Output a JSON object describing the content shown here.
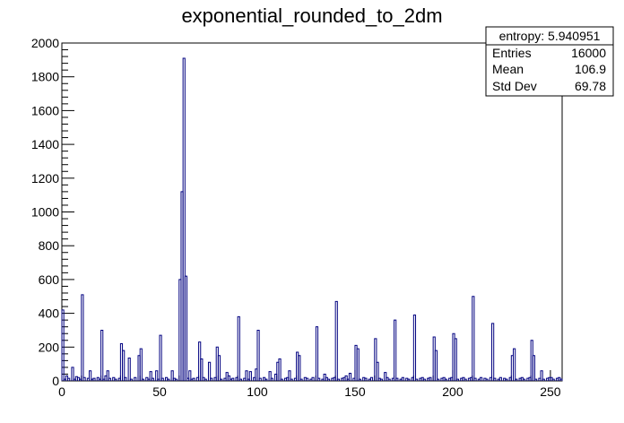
{
  "chart_data": {
    "type": "bar",
    "title": "exponential_rounded_to_2dm",
    "xlabel": "",
    "ylabel": "",
    "xlim": [
      0,
      256
    ],
    "ylim": [
      0,
      2000
    ],
    "x_ticks": [
      0,
      50,
      100,
      150,
      200,
      250
    ],
    "y_ticks": [
      0,
      200,
      400,
      600,
      800,
      1000,
      1200,
      1400,
      1600,
      1800,
      2000
    ],
    "bin_width": 1,
    "line_color": "#000080",
    "stats_box": {
      "header": "entropy: 5.940951",
      "rows": [
        {
          "label": "Entries",
          "value": "16000"
        },
        {
          "label": "Mean",
          "value": "106.9"
        },
        {
          "label": "Std Dev",
          "value": "69.78"
        }
      ]
    },
    "bins": [
      [
        0,
        420
      ],
      [
        1,
        10
      ],
      [
        2,
        30
      ],
      [
        3,
        15
      ],
      [
        4,
        0
      ],
      [
        5,
        80
      ],
      [
        6,
        10
      ],
      [
        7,
        25
      ],
      [
        8,
        20
      ],
      [
        9,
        10
      ],
      [
        10,
        510
      ],
      [
        11,
        20
      ],
      [
        12,
        0
      ],
      [
        13,
        15
      ],
      [
        14,
        60
      ],
      [
        15,
        10
      ],
      [
        16,
        15
      ],
      [
        17,
        0
      ],
      [
        18,
        20
      ],
      [
        19,
        10
      ],
      [
        20,
        300
      ],
      [
        21,
        10
      ],
      [
        22,
        30
      ],
      [
        23,
        60
      ],
      [
        24,
        15
      ],
      [
        25,
        0
      ],
      [
        26,
        20
      ],
      [
        27,
        10
      ],
      [
        28,
        0
      ],
      [
        29,
        15
      ],
      [
        30,
        220
      ],
      [
        31,
        180
      ],
      [
        32,
        20
      ],
      [
        33,
        0
      ],
      [
        34,
        135
      ],
      [
        35,
        10
      ],
      [
        36,
        0
      ],
      [
        37,
        20
      ],
      [
        38,
        0
      ],
      [
        39,
        150
      ],
      [
        40,
        190
      ],
      [
        41,
        10
      ],
      [
        42,
        0
      ],
      [
        43,
        20
      ],
      [
        44,
        10
      ],
      [
        45,
        55
      ],
      [
        46,
        15
      ],
      [
        47,
        0
      ],
      [
        48,
        60
      ],
      [
        49,
        10
      ],
      [
        50,
        270
      ],
      [
        51,
        15
      ],
      [
        52,
        0
      ],
      [
        53,
        20
      ],
      [
        54,
        10
      ],
      [
        55,
        0
      ],
      [
        56,
        60
      ],
      [
        57,
        15
      ],
      [
        58,
        10
      ],
      [
        59,
        0
      ],
      [
        60,
        600
      ],
      [
        61,
        1120
      ],
      [
        62,
        1910
      ],
      [
        63,
        620
      ],
      [
        64,
        15
      ],
      [
        65,
        60
      ],
      [
        66,
        10
      ],
      [
        67,
        15
      ],
      [
        68,
        0
      ],
      [
        69,
        20
      ],
      [
        70,
        230
      ],
      [
        71,
        130
      ],
      [
        72,
        20
      ],
      [
        73,
        10
      ],
      [
        74,
        0
      ],
      [
        75,
        110
      ],
      [
        76,
        15
      ],
      [
        77,
        0
      ],
      [
        78,
        20
      ],
      [
        79,
        200
      ],
      [
        80,
        150
      ],
      [
        81,
        10
      ],
      [
        82,
        0
      ],
      [
        83,
        15
      ],
      [
        84,
        50
      ],
      [
        85,
        30
      ],
      [
        86,
        10
      ],
      [
        87,
        15
      ],
      [
        88,
        0
      ],
      [
        89,
        20
      ],
      [
        90,
        380
      ],
      [
        91,
        10
      ],
      [
        92,
        0
      ],
      [
        93,
        15
      ],
      [
        94,
        60
      ],
      [
        95,
        10
      ],
      [
        96,
        55
      ],
      [
        97,
        0
      ],
      [
        98,
        20
      ],
      [
        99,
        70
      ],
      [
        100,
        300
      ],
      [
        101,
        15
      ],
      [
        102,
        0
      ],
      [
        103,
        20
      ],
      [
        104,
        10
      ],
      [
        105,
        0
      ],
      [
        106,
        55
      ],
      [
        107,
        15
      ],
      [
        108,
        0
      ],
      [
        109,
        40
      ],
      [
        110,
        110
      ],
      [
        111,
        130
      ],
      [
        112,
        10
      ],
      [
        113,
        0
      ],
      [
        114,
        15
      ],
      [
        115,
        20
      ],
      [
        116,
        60
      ],
      [
        117,
        10
      ],
      [
        118,
        0
      ],
      [
        119,
        15
      ],
      [
        120,
        170
      ],
      [
        121,
        150
      ],
      [
        122,
        10
      ],
      [
        123,
        0
      ],
      [
        124,
        20
      ],
      [
        125,
        15
      ],
      [
        126,
        0
      ],
      [
        127,
        10
      ],
      [
        128,
        20
      ],
      [
        129,
        0
      ],
      [
        130,
        320
      ],
      [
        131,
        15
      ],
      [
        132,
        0
      ],
      [
        133,
        10
      ],
      [
        134,
        40
      ],
      [
        135,
        20
      ],
      [
        136,
        10
      ],
      [
        137,
        0
      ],
      [
        138,
        15
      ],
      [
        139,
        20
      ],
      [
        140,
        470
      ],
      [
        141,
        10
      ],
      [
        142,
        0
      ],
      [
        143,
        15
      ],
      [
        144,
        20
      ],
      [
        145,
        30
      ],
      [
        146,
        10
      ],
      [
        147,
        45
      ],
      [
        148,
        0
      ],
      [
        149,
        15
      ],
      [
        150,
        210
      ],
      [
        151,
        190
      ],
      [
        152,
        10
      ],
      [
        153,
        0
      ],
      [
        154,
        20
      ],
      [
        155,
        15
      ],
      [
        156,
        0
      ],
      [
        157,
        10
      ],
      [
        158,
        20
      ],
      [
        159,
        0
      ],
      [
        160,
        250
      ],
      [
        161,
        110
      ],
      [
        162,
        15
      ],
      [
        163,
        10
      ],
      [
        164,
        0
      ],
      [
        165,
        50
      ],
      [
        166,
        20
      ],
      [
        167,
        10
      ],
      [
        168,
        0
      ],
      [
        169,
        15
      ],
      [
        170,
        360
      ],
      [
        171,
        15
      ],
      [
        172,
        0
      ],
      [
        173,
        10
      ],
      [
        174,
        20
      ],
      [
        175,
        0
      ],
      [
        176,
        15
      ],
      [
        177,
        10
      ],
      [
        178,
        0
      ],
      [
        179,
        20
      ],
      [
        180,
        390
      ],
      [
        181,
        10
      ],
      [
        182,
        0
      ],
      [
        183,
        15
      ],
      [
        184,
        20
      ],
      [
        185,
        10
      ],
      [
        186,
        0
      ],
      [
        187,
        15
      ],
      [
        188,
        20
      ],
      [
        189,
        0
      ],
      [
        190,
        260
      ],
      [
        191,
        180
      ],
      [
        192,
        10
      ],
      [
        193,
        0
      ],
      [
        194,
        15
      ],
      [
        195,
        20
      ],
      [
        196,
        10
      ],
      [
        197,
        0
      ],
      [
        198,
        15
      ],
      [
        199,
        20
      ],
      [
        200,
        280
      ],
      [
        201,
        250
      ],
      [
        202,
        10
      ],
      [
        203,
        0
      ],
      [
        204,
        15
      ],
      [
        205,
        20
      ],
      [
        206,
        10
      ],
      [
        207,
        0
      ],
      [
        208,
        15
      ],
      [
        209,
        20
      ],
      [
        210,
        500
      ],
      [
        211,
        15
      ],
      [
        212,
        0
      ],
      [
        213,
        10
      ],
      [
        214,
        20
      ],
      [
        215,
        0
      ],
      [
        216,
        15
      ],
      [
        217,
        10
      ],
      [
        218,
        0
      ],
      [
        219,
        20
      ],
      [
        220,
        340
      ],
      [
        221,
        15
      ],
      [
        222,
        0
      ],
      [
        223,
        10
      ],
      [
        224,
        20
      ],
      [
        225,
        0
      ],
      [
        226,
        15
      ],
      [
        227,
        10
      ],
      [
        228,
        0
      ],
      [
        229,
        20
      ],
      [
        230,
        150
      ],
      [
        231,
        190
      ],
      [
        232,
        10
      ],
      [
        233,
        0
      ],
      [
        234,
        15
      ],
      [
        235,
        20
      ],
      [
        236,
        10
      ],
      [
        237,
        0
      ],
      [
        238,
        15
      ],
      [
        239,
        20
      ],
      [
        240,
        240
      ],
      [
        241,
        150
      ],
      [
        242,
        10
      ],
      [
        243,
        0
      ],
      [
        244,
        15
      ],
      [
        245,
        60
      ],
      [
        246,
        10
      ],
      [
        247,
        0
      ],
      [
        248,
        15
      ],
      [
        249,
        20
      ],
      [
        250,
        20
      ],
      [
        251,
        10
      ],
      [
        252,
        0
      ],
      [
        253,
        15
      ],
      [
        254,
        20
      ],
      [
        255,
        10
      ]
    ]
  }
}
